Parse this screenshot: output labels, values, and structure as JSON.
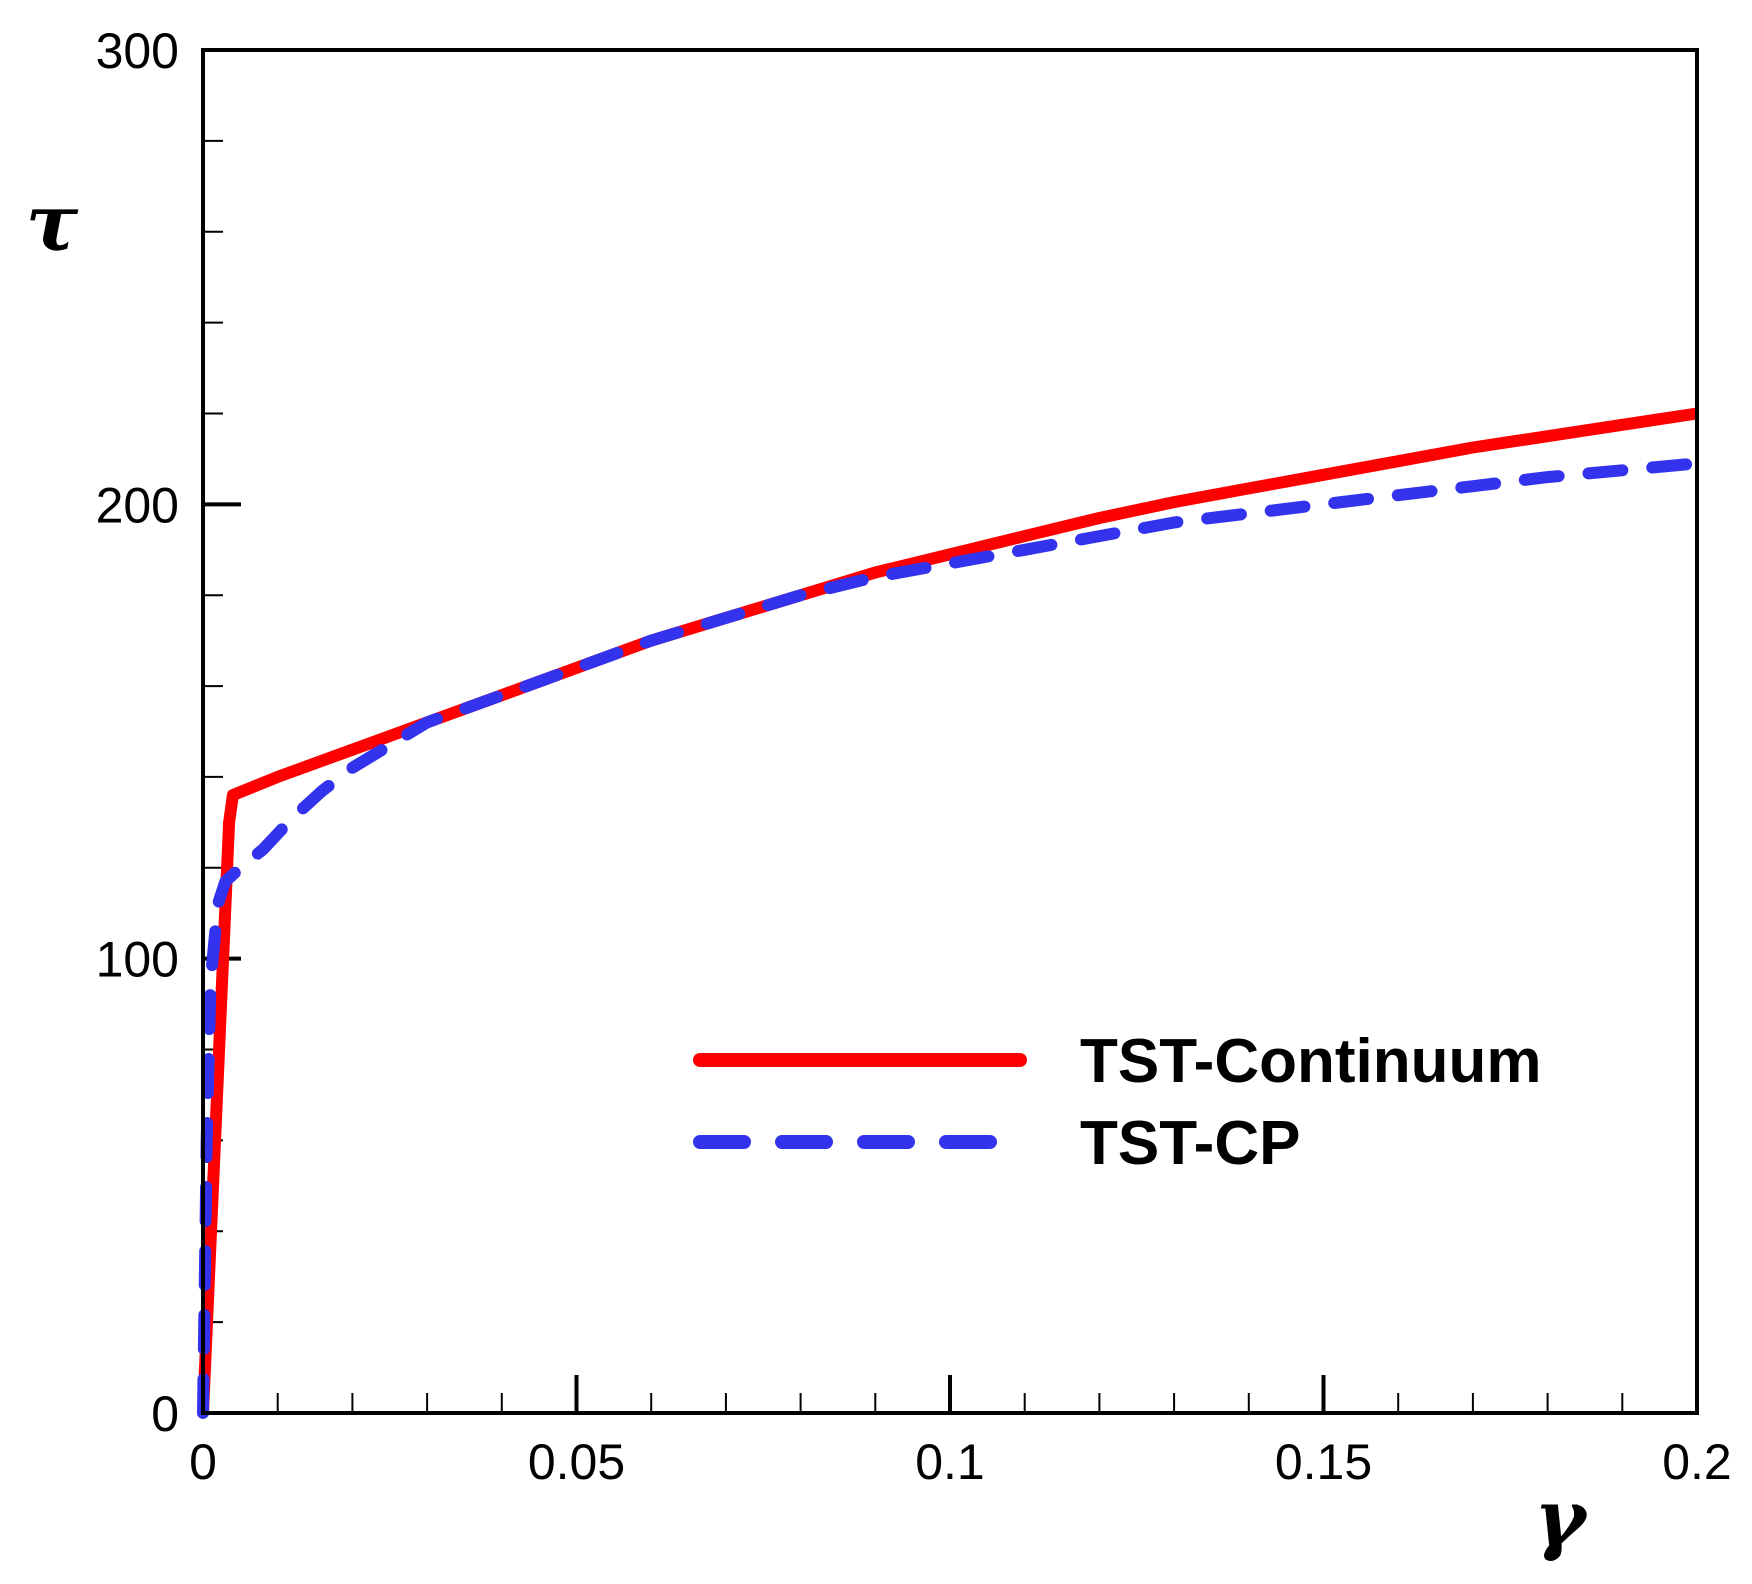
{
  "chart_data": {
    "type": "line",
    "title": "",
    "xlabel": "γ",
    "ylabel": "τ",
    "xlim": [
      0,
      0.2
    ],
    "ylim": [
      0,
      300
    ],
    "x_ticks": [
      0,
      0.05,
      0.1,
      0.15,
      0.2
    ],
    "x_tick_labels": [
      "0",
      "0.05",
      "0.1",
      "0.15",
      "0.2"
    ],
    "y_ticks": [
      0,
      100,
      200,
      300
    ],
    "y_tick_labels": [
      "0",
      "100",
      "200",
      "300"
    ],
    "x_minor_step": 0.01,
    "y_minor_step": 20,
    "grid": false,
    "legend_position": "lower-right",
    "series": [
      {
        "name": "TST-Continuum",
        "color": "#ff0000",
        "style": "solid",
        "x": [
          0,
          0.0035,
          0.004,
          0.01,
          0.02,
          0.03,
          0.04,
          0.05,
          0.06,
          0.07,
          0.08,
          0.09,
          0.1,
          0.11,
          0.12,
          0.13,
          0.14,
          0.15,
          0.16,
          0.17,
          0.18,
          0.19,
          0.2
        ],
        "y": [
          0,
          130,
          136,
          140,
          146,
          152,
          158,
          164,
          170,
          175,
          180,
          185,
          189,
          193,
          197,
          200.5,
          203.5,
          206.5,
          209.5,
          212.5,
          215,
          217.5,
          220
        ]
      },
      {
        "name": "TST-CP",
        "color": "#3333ee",
        "style": "dashed",
        "x": [
          0,
          0.0005,
          0.001,
          0.002,
          0.003,
          0.005,
          0.008,
          0.012,
          0.016,
          0.02,
          0.025,
          0.03,
          0.04,
          0.05,
          0.06,
          0.07,
          0.08,
          0.09,
          0.1,
          0.11,
          0.12,
          0.13,
          0.14,
          0.15,
          0.16,
          0.17,
          0.18,
          0.19,
          0.2
        ],
        "y": [
          0,
          60,
          95,
          112,
          117,
          120,
          124,
          131,
          137,
          142,
          147,
          152,
          158,
          164,
          170,
          175,
          180,
          184,
          187,
          190,
          193,
          196,
          198,
          200,
          202,
          204,
          206,
          207.5,
          209
        ]
      }
    ]
  }
}
